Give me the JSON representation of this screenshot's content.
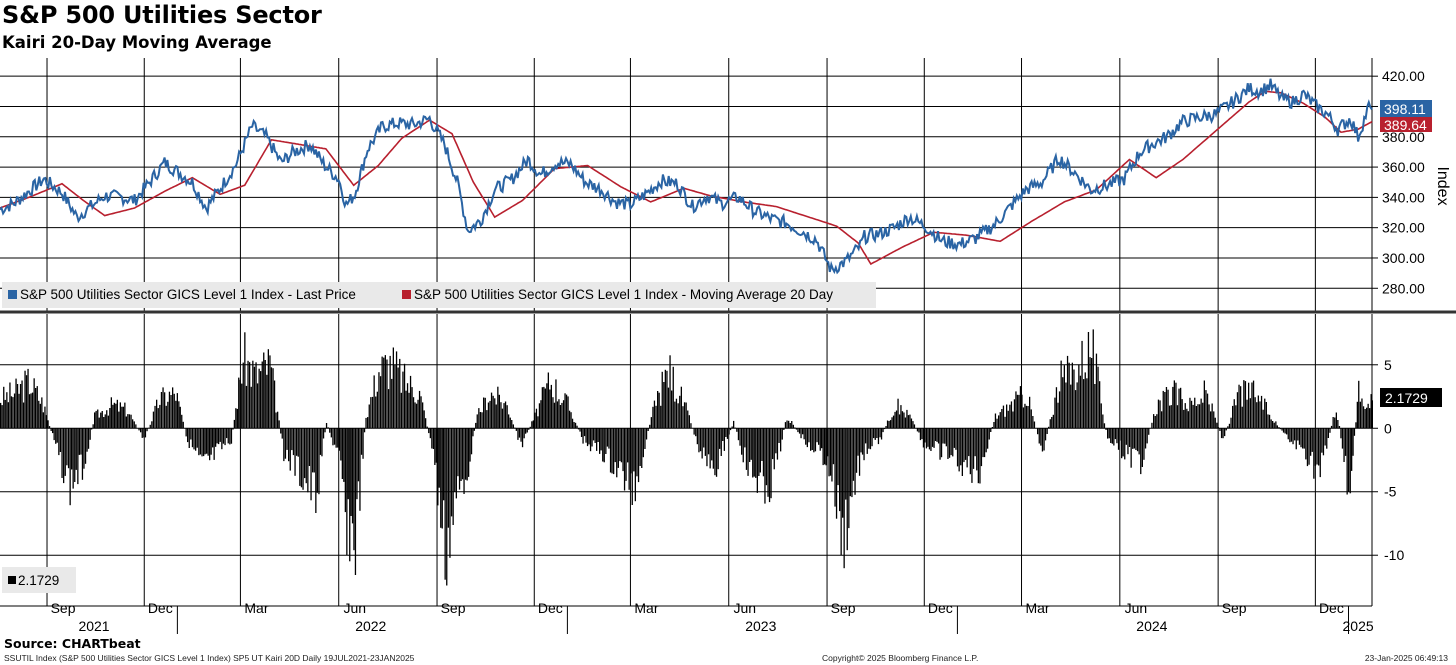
{
  "header": {
    "title": "S&P 500 Utilities Sector",
    "subtitle": "Kairi 20-Day Moving Average"
  },
  "footer": {
    "source": "Source: CHARTbeat",
    "left_note": "SSUTIL Index (S&P 500 Utilities Sector GICS Level 1 Index) SP5 UT Kairi 20D  Daily 19JUL2021-23JAN2025",
    "copyright": "Copyright© 2025 Bloomberg Finance L.P.",
    "timestamp": "23-Jan-2025 06:49:13"
  },
  "colors": {
    "price": "#2a64a4",
    "moving_average": "#b8202e",
    "kairi_bars": "#000000",
    "grid": "#000000"
  },
  "chart_data": [
    {
      "type": "line",
      "ylabel": "Index",
      "ylim": [
        265,
        432
      ],
      "y_ticks": [
        "420.00",
        "400.00",
        "380.00",
        "360.00",
        "340.00",
        "320.00",
        "300.00",
        "280.00"
      ],
      "legend_placement": "bottom-left",
      "series": [
        {
          "name": "S&P 500 Utilities Sector GICS Level 1 Index - Last Price",
          "last_value_label": "398.11",
          "x": [
            "2021-07-19",
            "2021-08-01",
            "2021-08-15",
            "2021-08-29",
            "2021-09-15",
            "2021-09-29",
            "2021-10-12",
            "2021-10-25",
            "2021-11-10",
            "2021-11-22",
            "2021-12-06",
            "2021-12-20",
            "2022-01-01",
            "2022-01-15",
            "2022-01-28",
            "2022-02-12",
            "2022-02-25",
            "2022-03-12",
            "2022-03-25",
            "2022-04-08",
            "2022-04-20",
            "2022-05-05",
            "2022-05-19",
            "2022-06-01",
            "2022-06-08",
            "2022-06-16",
            "2022-06-28",
            "2022-07-12",
            "2022-07-27",
            "2022-08-10",
            "2022-08-25",
            "2022-09-08",
            "2022-09-20",
            "2022-09-30",
            "2022-10-12",
            "2022-10-25",
            "2022-11-10",
            "2022-11-25",
            "2022-12-07",
            "2022-12-22",
            "2023-01-04",
            "2023-01-18",
            "2023-02-02",
            "2023-02-15",
            "2023-03-01",
            "2023-03-15",
            "2023-03-30",
            "2023-04-14",
            "2023-04-28",
            "2023-05-12",
            "2023-05-25",
            "2023-06-10",
            "2023-06-25",
            "2023-07-10",
            "2023-07-25",
            "2023-08-10",
            "2023-08-22",
            "2023-09-05",
            "2023-09-19",
            "2023-10-02",
            "2023-10-06",
            "2023-10-20",
            "2023-11-03",
            "2023-11-17",
            "2023-12-04",
            "2023-12-18",
            "2024-01-03",
            "2024-01-18",
            "2024-02-05",
            "2024-02-20",
            "2024-03-05",
            "2024-03-20",
            "2024-04-05",
            "2024-04-20",
            "2024-05-05",
            "2024-05-20",
            "2024-06-05",
            "2024-06-20",
            "2024-07-01",
            "2024-07-15",
            "2024-07-30",
            "2024-08-15",
            "2024-08-30",
            "2024-09-15",
            "2024-09-30",
            "2024-10-10",
            "2024-10-20",
            "2024-10-31",
            "2024-11-10",
            "2024-11-20",
            "2024-12-02",
            "2024-12-12",
            "2024-12-22",
            "2025-01-03",
            "2025-01-10",
            "2025-01-20",
            "2025-01-23"
          ],
          "values": [
            332,
            336,
            344,
            352,
            343,
            327,
            334,
            341,
            340,
            338,
            350,
            363,
            357,
            350,
            333,
            348,
            362,
            387,
            380,
            363,
            370,
            375,
            361,
            352,
            335,
            342,
            372,
            387,
            389,
            388,
            392,
            375,
            350,
            318,
            325,
            345,
            352,
            365,
            355,
            363,
            362,
            350,
            345,
            337,
            335,
            342,
            351,
            349,
            334,
            341,
            336,
            340,
            331,
            326,
            323,
            317,
            312,
            292,
            298,
            308,
            314,
            316,
            320,
            327,
            320,
            311,
            309,
            313,
            322,
            334,
            345,
            350,
            366,
            356,
            345,
            348,
            352,
            370,
            375,
            380,
            390,
            393,
            395,
            403,
            412,
            410,
            414,
            405,
            403,
            408,
            400,
            395,
            385,
            392,
            380,
            400,
            398
          ]
        },
        {
          "name": "S&P 500 Utilities Sector GICS Level 1 Index - Moving Average 20 Day",
          "last_value_label": "389.64",
          "x": [
            "2021-07-19",
            "2021-08-15",
            "2021-09-15",
            "2021-10-05",
            "2021-10-25",
            "2021-11-22",
            "2021-12-20",
            "2022-01-15",
            "2022-02-10",
            "2022-03-05",
            "2022-03-30",
            "2022-04-25",
            "2022-05-20",
            "2022-06-15",
            "2022-07-08",
            "2022-07-30",
            "2022-08-25",
            "2022-09-15",
            "2022-10-05",
            "2022-10-25",
            "2022-11-20",
            "2022-12-20",
            "2023-01-20",
            "2023-02-20",
            "2023-03-20",
            "2023-04-20",
            "2023-05-15",
            "2023-06-15",
            "2023-07-15",
            "2023-08-15",
            "2023-09-10",
            "2023-09-30",
            "2023-10-12",
            "2023-11-10",
            "2023-12-10",
            "2024-01-10",
            "2024-02-10",
            "2024-03-10",
            "2024-04-10",
            "2024-05-10",
            "2024-06-10",
            "2024-07-05",
            "2024-07-30",
            "2024-08-30",
            "2024-09-30",
            "2024-10-15",
            "2024-10-30",
            "2024-11-20",
            "2024-12-10",
            "2024-12-25",
            "2025-01-10",
            "2025-01-23"
          ],
          "values": [
            333,
            340,
            349,
            338,
            328,
            333,
            344,
            353,
            342,
            348,
            378,
            375,
            372,
            348,
            361,
            379,
            391,
            382,
            350,
            327,
            338,
            359,
            361,
            347,
            337,
            346,
            341,
            337,
            334,
            327,
            321,
            310,
            296,
            307,
            317,
            315,
            311,
            324,
            337,
            345,
            365,
            353,
            365,
            384,
            403,
            410,
            409,
            402,
            393,
            383,
            385,
            390
          ]
        }
      ]
    },
    {
      "type": "bar",
      "ylim": [
        -14,
        9
      ],
      "y_ticks": [
        "5",
        "0",
        "-5",
        "-10"
      ],
      "legend_placement": "bottom-left",
      "x_month_labels": [
        "Sep",
        "Dec",
        "Mar",
        "Jun",
        "Sep",
        "Dec",
        "Mar",
        "Jun",
        "Sep",
        "Dec",
        "Mar",
        "Jun",
        "Sep",
        "Dec"
      ],
      "x_year_labels": [
        "2021",
        "2022",
        "2023",
        "2024",
        "2025"
      ],
      "series": [
        {
          "name": "2.1729",
          "last_value_label": "2.1729",
          "x": [
            "2021-07-19",
            "2021-08-01",
            "2021-08-15",
            "2021-08-28",
            "2021-09-10",
            "2021-09-22",
            "2021-10-05",
            "2021-10-15",
            "2021-11-01",
            "2021-11-15",
            "2021-11-30",
            "2021-12-15",
            "2021-12-30",
            "2022-01-10",
            "2022-01-25",
            "2022-02-08",
            "2022-02-20",
            "2022-03-03",
            "2022-03-15",
            "2022-03-28",
            "2022-04-10",
            "2022-04-25",
            "2022-05-10",
            "2022-05-20",
            "2022-06-01",
            "2022-06-08",
            "2022-06-16",
            "2022-06-26",
            "2022-07-08",
            "2022-07-20",
            "2022-08-01",
            "2022-08-15",
            "2022-08-28",
            "2022-09-08",
            "2022-09-20",
            "2022-09-30",
            "2022-10-08",
            "2022-10-20",
            "2022-11-05",
            "2022-11-18",
            "2022-12-01",
            "2022-12-15",
            "2023-01-01",
            "2023-01-15",
            "2023-02-01",
            "2023-02-20",
            "2023-03-05",
            "2023-03-20",
            "2023-04-05",
            "2023-04-20",
            "2023-05-05",
            "2023-05-20",
            "2023-06-05",
            "2023-06-20",
            "2023-07-10",
            "2023-07-25",
            "2023-08-10",
            "2023-08-25",
            "2023-09-05",
            "2023-09-15",
            "2023-09-28",
            "2023-10-05",
            "2023-10-20",
            "2023-11-03",
            "2023-11-17",
            "2023-12-01",
            "2023-12-18",
            "2024-01-05",
            "2024-01-20",
            "2024-02-05",
            "2024-02-20",
            "2024-03-05",
            "2024-03-20",
            "2024-04-05",
            "2024-04-20",
            "2024-05-05",
            "2024-05-20",
            "2024-06-05",
            "2024-06-20",
            "2024-07-05",
            "2024-07-20",
            "2024-08-05",
            "2024-08-20",
            "2024-09-05",
            "2024-09-20",
            "2024-10-05",
            "2024-10-20",
            "2024-11-05",
            "2024-11-20",
            "2024-12-05",
            "2024-12-20",
            "2025-01-02",
            "2025-01-10",
            "2025-01-16",
            "2025-01-23"
          ],
          "values": [
            2.5,
            3,
            4,
            2,
            -2,
            -5,
            -3,
            1,
            2,
            1.5,
            -1,
            2.5,
            3,
            -1,
            -3.5,
            -2,
            -1,
            6,
            4.5,
            5.5,
            -2,
            -4,
            -6,
            0.5,
            -3,
            -8,
            -10,
            1,
            5,
            5.5,
            4,
            3,
            -2,
            -11,
            -6,
            -3,
            1,
            3,
            2,
            -1.5,
            1,
            4,
            2,
            -1,
            -2,
            -4,
            -5,
            1,
            5,
            2,
            -2,
            -3,
            0.5,
            -4,
            -5,
            1,
            -1,
            -2,
            -4,
            -10,
            -4,
            -2,
            -1,
            2,
            1,
            -1.5,
            -2,
            -3,
            -4,
            1,
            2,
            3,
            -2,
            4,
            5,
            7,
            -1,
            -2,
            -3,
            2,
            3,
            2,
            3,
            -1,
            3,
            3,
            1,
            -1,
            -2,
            -4,
            2,
            -6,
            4,
            2,
            2.2
          ]
        }
      ]
    }
  ]
}
